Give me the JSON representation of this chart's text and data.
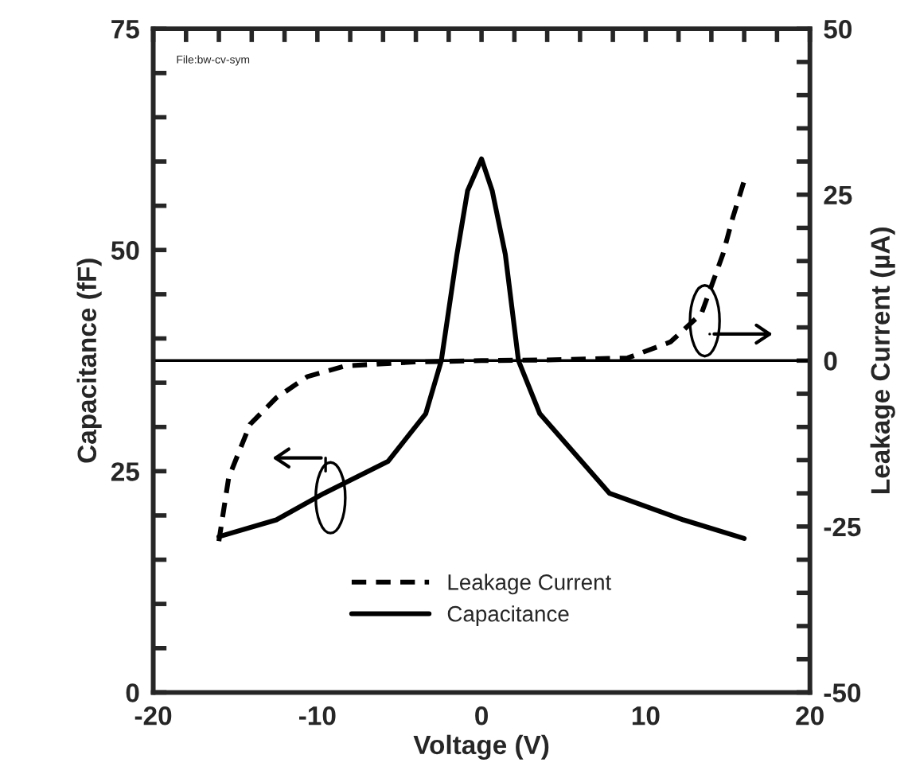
{
  "chart_data": {
    "type": "line",
    "xlabel": "Voltage (V)",
    "ylabel": "Capacitance (fF)",
    "y2label": "Leakage Current (µA)",
    "annotations": [
      "File:bw-cv-sym"
    ],
    "xlim": [
      -20,
      20
    ],
    "ylim": [
      0,
      75
    ],
    "y2lim": [
      -50,
      50
    ],
    "xticks": [
      -20,
      {
        "value": -18,
        "label": null
      },
      {
        "value": -16,
        "label": null
      },
      {
        "value": -14,
        "label": null
      },
      {
        "value": -12,
        "label": null
      },
      -10,
      {
        "value": -8,
        "label": null
      },
      {
        "value": -6,
        "label": null
      },
      {
        "value": -4,
        "label": null
      },
      {
        "value": -2,
        "label": null
      },
      0,
      {
        "value": 2,
        "label": null
      },
      {
        "value": 4,
        "label": null
      },
      {
        "value": 6,
        "label": null
      },
      {
        "value": 8,
        "label": null
      },
      10,
      {
        "value": 12,
        "label": null
      },
      {
        "value": 14,
        "label": null
      },
      {
        "value": 16,
        "label": null
      },
      {
        "value": 18,
        "label": null
      },
      20
    ],
    "yticks": [
      0,
      {
        "value": 5,
        "label": null
      },
      {
        "value": 10,
        "label": null
      },
      {
        "value": 15,
        "label": null
      },
      {
        "value": 20,
        "label": null
      },
      25,
      {
        "value": 30,
        "label": null
      },
      {
        "value": 35,
        "label": null
      },
      {
        "value": 40,
        "label": null
      },
      {
        "value": 45,
        "label": null
      },
      50,
      {
        "value": 55,
        "label": null
      },
      {
        "value": 60,
        "label": null
      },
      {
        "value": 65,
        "label": null
      },
      {
        "value": 70,
        "label": null
      },
      75
    ],
    "y2ticks": [
      -50,
      {
        "value": -45,
        "label": null
      },
      {
        "value": -40,
        "label": null
      },
      {
        "value": -35,
        "label": null
      },
      {
        "value": -30,
        "label": null
      },
      -25,
      {
        "value": -20,
        "label": null
      },
      {
        "value": -15,
        "label": null
      },
      {
        "value": -10,
        "label": null
      },
      {
        "value": -5,
        "label": null
      },
      0,
      {
        "value": 5,
        "label": null
      },
      {
        "value": 10,
        "label": null
      },
      {
        "value": 15,
        "label": null
      },
      {
        "value": 20,
        "label": null
      },
      25,
      {
        "value": 30,
        "label": null
      },
      {
        "value": 35,
        "label": null
      },
      {
        "value": 40,
        "label": null
      },
      {
        "value": 45,
        "label": null
      },
      50
    ],
    "grid": false,
    "legend": "bottom",
    "ref_lines": [
      {
        "axis": "y2",
        "value": 0,
        "label": null,
        "color": "#000000",
        "line_style": "solid"
      }
    ],
    "series": [
      {
        "name": "Leakage Current",
        "color": "#000000",
        "axis": "y2",
        "line_style": "dashed",
        "x": [
          -16,
          -15.4,
          -14.1,
          -12.5,
          -10.6,
          -8.3,
          -4.1,
          0,
          4,
          8.9,
          11.5,
          13.4,
          14.7,
          15.3,
          16
        ],
        "values": [
          -27.2,
          -17.6,
          -9.6,
          -5.6,
          -2.4,
          -0.8,
          -0.2,
          0,
          0.1,
          0.4,
          2.8,
          7.1,
          16,
          21.5,
          27.1
        ]
      },
      {
        "name": "Capacitance",
        "color": "#000000",
        "line_style": "solid",
        "x": [
          -16,
          -12.5,
          -9.6,
          -5.7,
          -3.4,
          -2.45,
          -1.5,
          -0.85,
          0,
          0.65,
          1.45,
          2.25,
          3.55,
          7.8,
          12.3,
          16
        ],
        "values": [
          17.6,
          19.5,
          22.5,
          26.1,
          31.5,
          37.5,
          49.5,
          56.7,
          60.3,
          56.7,
          49.5,
          37.5,
          31.5,
          22.5,
          19.5,
          17.4
        ]
      }
    ]
  }
}
